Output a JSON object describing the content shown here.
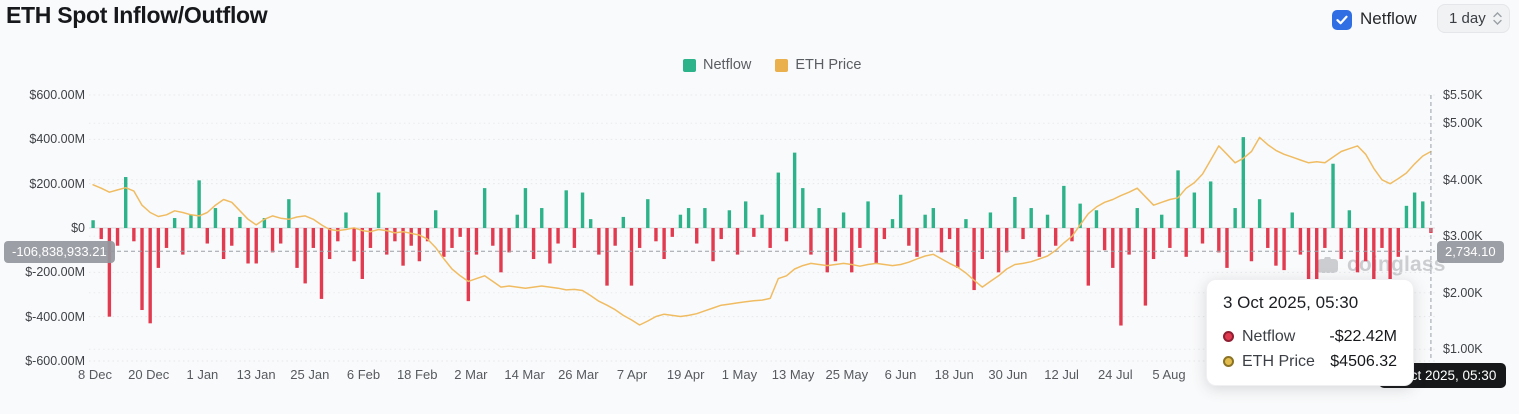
{
  "header": {
    "title": "ETH Spot Inflow/Outflow",
    "checkbox_label": "Netflow",
    "checkbox_checked": true,
    "checkbox_color": "#2f6fe3",
    "interval_value": "1 day"
  },
  "legend": [
    {
      "label": "Netflow",
      "color": "#2db389"
    },
    {
      "label": "ETH Price",
      "color": "#e9b04d"
    }
  ],
  "watermark": "coinglass",
  "axes": {
    "left_ticks": [
      {
        "label": "$600.00M",
        "value": 600
      },
      {
        "label": "$400.00M",
        "value": 400
      },
      {
        "label": "$200.00M",
        "value": 200
      },
      {
        "label": "$0",
        "value": 0
      },
      {
        "label": "$-200.00M",
        "value": -200
      },
      {
        "label": "$-400.00M",
        "value": -400
      },
      {
        "label": "$-600.00M",
        "value": -600
      }
    ],
    "right_ticks": [
      {
        "label": "$5.50K",
        "value": 5.5
      },
      {
        "label": "$5.00K",
        "value": 5.0
      },
      {
        "label": "$4.00K",
        "value": 4.0
      },
      {
        "label": "$3.00K",
        "value": 3.0
      },
      {
        "label": "$2.00K",
        "value": 2.0
      },
      {
        "label": "$1.00K",
        "value": 1.0
      }
    ],
    "x_ticks": [
      "8 Dec",
      "20 Dec",
      "1 Jan",
      "13 Jan",
      "25 Jan",
      "6 Feb",
      "18 Feb",
      "2 Mar",
      "14 Mar",
      "26 Mar",
      "7 Apr",
      "19 Apr",
      "1 May",
      "13 May",
      "25 May",
      "6 Jun",
      "18 Jun",
      "30 Jun",
      "12 Jul",
      "24 Jul",
      "5 Aug"
    ]
  },
  "crosshair": {
    "left_label": "-106,838,933.21",
    "right_label": "2,734.10",
    "x_label": "3 Oct 2025, 05:30",
    "netflow_value": -106838933.21,
    "price_value": 2734.1
  },
  "tooltip": {
    "title": "3 Oct 2025, 05:30",
    "rows": [
      {
        "label": "Netflow",
        "value": "-$22.42M",
        "dot_color": "#e03a50",
        "dot_ring": "#8f1f33"
      },
      {
        "label": "ETH Price",
        "value": "$4506.32",
        "dot_color": "#e2bd4e",
        "dot_ring": "#8a7326"
      }
    ]
  },
  "chart_data": {
    "type": "bar",
    "title": "ETH Spot Inflow/Outflow",
    "x_range": [
      "8 Dec 2024",
      "3 Oct 2025"
    ],
    "x_tick_labels": [
      "8 Dec",
      "20 Dec",
      "1 Jan",
      "13 Jan",
      "25 Jan",
      "6 Feb",
      "18 Feb",
      "2 Mar",
      "14 Mar",
      "26 Mar",
      "7 Apr",
      "19 Apr",
      "1 May",
      "13 May",
      "25 May",
      "6 Jun",
      "18 Jun",
      "30 Jun",
      "12 Jul",
      "24 Jul",
      "5 Aug"
    ],
    "left_axis_range_musd": [
      -600,
      600
    ],
    "right_axis_range_kusd": [
      1.0,
      5.5
    ],
    "grid": true,
    "legend_position": "top-center",
    "series": [
      {
        "name": "Netflow",
        "type": "bar",
        "unit": "million USD (estimated from pixels, ~1.8-day resolution)",
        "color_positive": "#2db389",
        "color_negative": "#e23b50",
        "values": [
          35,
          -50,
          -400,
          -80,
          230,
          -60,
          -370,
          -430,
          -180,
          -90,
          45,
          -120,
          60,
          215,
          -70,
          90,
          -140,
          -80,
          50,
          -160,
          -160,
          45,
          -110,
          -70,
          130,
          -180,
          -250,
          -90,
          -320,
          -140,
          -60,
          70,
          -150,
          -230,
          -90,
          160,
          -120,
          -60,
          -170,
          -80,
          -150,
          -60,
          80,
          -130,
          -90,
          -40,
          -330,
          -120,
          180,
          -80,
          -200,
          -110,
          60,
          180,
          -140,
          90,
          -160,
          -70,
          170,
          -90,
          160,
          40,
          -120,
          -260,
          -80,
          50,
          -260,
          -90,
          130,
          -60,
          -140,
          -40,
          60,
          90,
          -70,
          90,
          -150,
          -50,
          80,
          -120,
          120,
          -40,
          60,
          -90,
          250,
          -60,
          340,
          180,
          -120,
          90,
          -200,
          -150,
          70,
          -200,
          -90,
          120,
          -160,
          -50,
          40,
          150,
          -80,
          -130,
          60,
          90,
          -110,
          -50,
          -180,
          40,
          -280,
          -140,
          70,
          -200,
          -110,
          140,
          -50,
          90,
          -130,
          60,
          -80,
          190,
          -60,
          110,
          -260,
          80,
          -100,
          -180,
          -440,
          -120,
          90,
          -350,
          -140,
          60,
          -90,
          260,
          -130,
          160,
          -70,
          210,
          -110,
          -180,
          90,
          410,
          -150,
          130,
          -90,
          -170,
          -190,
          70,
          -120,
          -240,
          -410,
          -90,
          290,
          -140,
          80,
          -200,
          -150,
          -260,
          -90,
          -300,
          -130,
          100,
          160,
          120,
          -22.42
        ]
      },
      {
        "name": "ETH Price",
        "type": "line",
        "unit": "thousand USD (estimated from pixels)",
        "color": "#f0bc62",
        "values": [
          3.91,
          3.85,
          3.78,
          3.82,
          3.86,
          3.8,
          3.55,
          3.42,
          3.35,
          3.38,
          3.45,
          3.42,
          3.38,
          3.36,
          3.42,
          3.55,
          3.65,
          3.6,
          3.45,
          3.3,
          3.2,
          3.3,
          3.36,
          3.32,
          3.3,
          3.34,
          3.36,
          3.3,
          3.2,
          3.12,
          3.1,
          3.12,
          3.15,
          3.1,
          3.08,
          3.12,
          3.1,
          3.06,
          3.08,
          3.05,
          3.02,
          2.95,
          2.8,
          2.6,
          2.42,
          2.3,
          2.2,
          2.25,
          2.3,
          2.2,
          2.1,
          2.12,
          2.1,
          2.08,
          2.1,
          2.12,
          2.1,
          2.08,
          2.05,
          2.06,
          2.04,
          1.95,
          1.85,
          1.78,
          1.7,
          1.6,
          1.52,
          1.43,
          1.5,
          1.58,
          1.62,
          1.6,
          1.58,
          1.6,
          1.63,
          1.68,
          1.73,
          1.78,
          1.8,
          1.82,
          1.84,
          1.86,
          1.87,
          1.9,
          2.25,
          2.3,
          2.42,
          2.48,
          2.52,
          2.5,
          2.48,
          2.5,
          2.52,
          2.5,
          2.47,
          2.5,
          2.52,
          2.5,
          2.48,
          2.5,
          2.54,
          2.6,
          2.65,
          2.68,
          2.6,
          2.52,
          2.45,
          2.35,
          2.22,
          2.1,
          2.2,
          2.3,
          2.42,
          2.5,
          2.52,
          2.55,
          2.6,
          2.65,
          2.75,
          2.88,
          3.0,
          3.2,
          3.4,
          3.52,
          3.6,
          3.65,
          3.72,
          3.78,
          3.85,
          3.7,
          3.55,
          3.6,
          3.65,
          3.68,
          3.85,
          3.95,
          4.1,
          4.35,
          4.6,
          4.45,
          4.3,
          4.38,
          4.5,
          4.75,
          4.62,
          4.52,
          4.45,
          4.4,
          4.35,
          4.3,
          4.32,
          4.3,
          4.4,
          4.5,
          4.55,
          4.6,
          4.45,
          4.2,
          4.0,
          3.93,
          4.02,
          4.12,
          4.28,
          4.42,
          4.5
        ]
      }
    ],
    "last_point": {
      "date": "3 Oct 2025, 05:30",
      "netflow": "-$22.42M",
      "eth_price": "$4506.32"
    }
  }
}
